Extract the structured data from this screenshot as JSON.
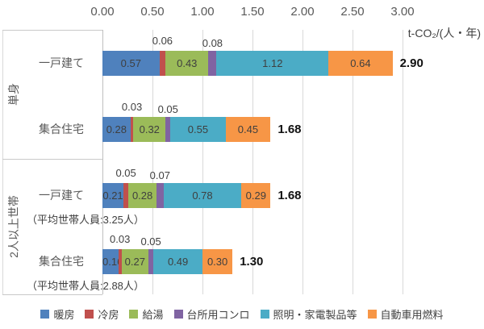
{
  "chart_data": {
    "type": "bar",
    "orientation": "horizontal-stacked",
    "unit": "t-CO₂/(人・年)",
    "xlim": [
      0,
      3
    ],
    "x_ticks": [
      "0.00",
      "0.50",
      "1.00",
      "1.50",
      "2.00",
      "2.50",
      "3.00"
    ],
    "grid": true,
    "legend_position": "bottom",
    "series": [
      {
        "name": "暖房",
        "color": "#4F81BD"
      },
      {
        "name": "冷房",
        "color": "#C0504D"
      },
      {
        "name": "給湯",
        "color": "#9BBB59"
      },
      {
        "name": "台所用コンロ",
        "color": "#8064A2"
      },
      {
        "name": "照明・家電製品等",
        "color": "#4BACC6"
      },
      {
        "name": "自動車用燃料",
        "color": "#F79646"
      }
    ],
    "groups": [
      {
        "label": "単身",
        "rows": [
          0,
          1
        ]
      },
      {
        "label": "2人以上世帯",
        "rows": [
          2,
          3
        ]
      }
    ],
    "rows": [
      {
        "label": "一戸建て",
        "sublabel": "",
        "values": [
          0.57,
          0.06,
          0.43,
          0.08,
          1.12,
          0.64
        ],
        "total_label": "2.90"
      },
      {
        "label": "集合住宅",
        "sublabel": "",
        "values": [
          0.28,
          0.03,
          0.32,
          0.05,
          0.55,
          0.45
        ],
        "total_label": "1.68"
      },
      {
        "label": "一戸建て",
        "sublabel": "（平均世帯人員:3.25人）",
        "values": [
          0.21,
          0.05,
          0.28,
          0.07,
          0.78,
          0.29
        ],
        "total_label": "1.68"
      },
      {
        "label": "集合住宅",
        "sublabel": "（平均世帯人員:2.88人）",
        "values": [
          0.16,
          0.03,
          0.27,
          0.05,
          0.49,
          0.3
        ],
        "total_label": "1.30"
      }
    ]
  }
}
